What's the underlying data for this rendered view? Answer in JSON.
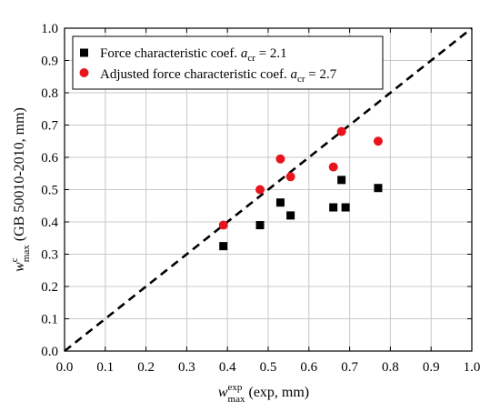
{
  "chart_data": {
    "type": "scatter",
    "xlim": [
      0.0,
      1.0
    ],
    "ylim": [
      0.0,
      1.0
    ],
    "x_ticks": [
      "0.0",
      "0.1",
      "0.2",
      "0.3",
      "0.4",
      "0.5",
      "0.6",
      "0.7",
      "0.8",
      "0.9",
      "1.0"
    ],
    "y_ticks": [
      "0.0",
      "0.1",
      "0.2",
      "0.3",
      "0.4",
      "0.5",
      "0.6",
      "0.7",
      "0.8",
      "0.9",
      "1.0"
    ],
    "xlabel": {
      "base": "w",
      "sup": "exp",
      "sub": "max",
      "rest": " (exp, mm)"
    },
    "ylabel": {
      "base": "w",
      "sup": "c",
      "sub": "max",
      "rest": " (GB 50010-2010, mm)"
    },
    "grid": true,
    "legend_position": "top-left",
    "reference_line": {
      "style": "dashed",
      "color": "#000000",
      "from": [
        0,
        0
      ],
      "to": [
        1,
        1
      ]
    },
    "series": [
      {
        "name": {
          "text": "Force characteristic coef. ",
          "sym": "a",
          "sub": "cr",
          "eq": " = 2.1"
        },
        "marker": "square",
        "color": "#000000",
        "points": [
          [
            0.39,
            0.325
          ],
          [
            0.48,
            0.39
          ],
          [
            0.53,
            0.46
          ],
          [
            0.555,
            0.42
          ],
          [
            0.66,
            0.445
          ],
          [
            0.68,
            0.53
          ],
          [
            0.69,
            0.445
          ],
          [
            0.77,
            0.505
          ]
        ]
      },
      {
        "name": {
          "text": "Adjusted force characteristic coef. ",
          "sym": "a",
          "sub": "cr",
          "eq": " = 2.7"
        },
        "marker": "circle",
        "color": "#e8141c",
        "points": [
          [
            0.39,
            0.39
          ],
          [
            0.48,
            0.5
          ],
          [
            0.53,
            0.595
          ],
          [
            0.555,
            0.54
          ],
          [
            0.66,
            0.57
          ],
          [
            0.68,
            0.68
          ],
          [
            0.77,
            0.65
          ]
        ]
      }
    ]
  }
}
